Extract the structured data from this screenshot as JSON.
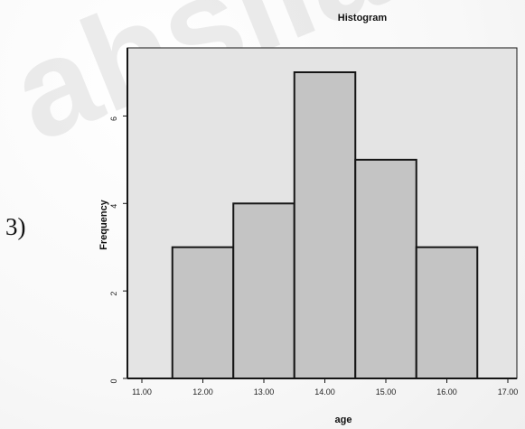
{
  "question_label": "3)",
  "watermark_text": "ahsilate",
  "chart_data": {
    "type": "bar",
    "title": "Histogram",
    "xlabel": "age",
    "ylabel": "Frequency",
    "x_ticks": [
      "11.00",
      "12.00",
      "13.00",
      "14.00",
      "15.00",
      "16.00",
      "17.00"
    ],
    "y_ticks": [
      "0",
      "2",
      "4",
      "6"
    ],
    "xlim": [
      11,
      17
    ],
    "ylim": [
      0,
      7
    ],
    "bin_centers": [
      12,
      13,
      14,
      15,
      16
    ],
    "bin_width": 1,
    "values": [
      3,
      4,
      7,
      5,
      3
    ],
    "colors": {
      "plot_bg": "#e4e4e4",
      "bar_fill": "#c4c4c4",
      "bar_stroke": "#151515",
      "axis": "#151515"
    }
  }
}
